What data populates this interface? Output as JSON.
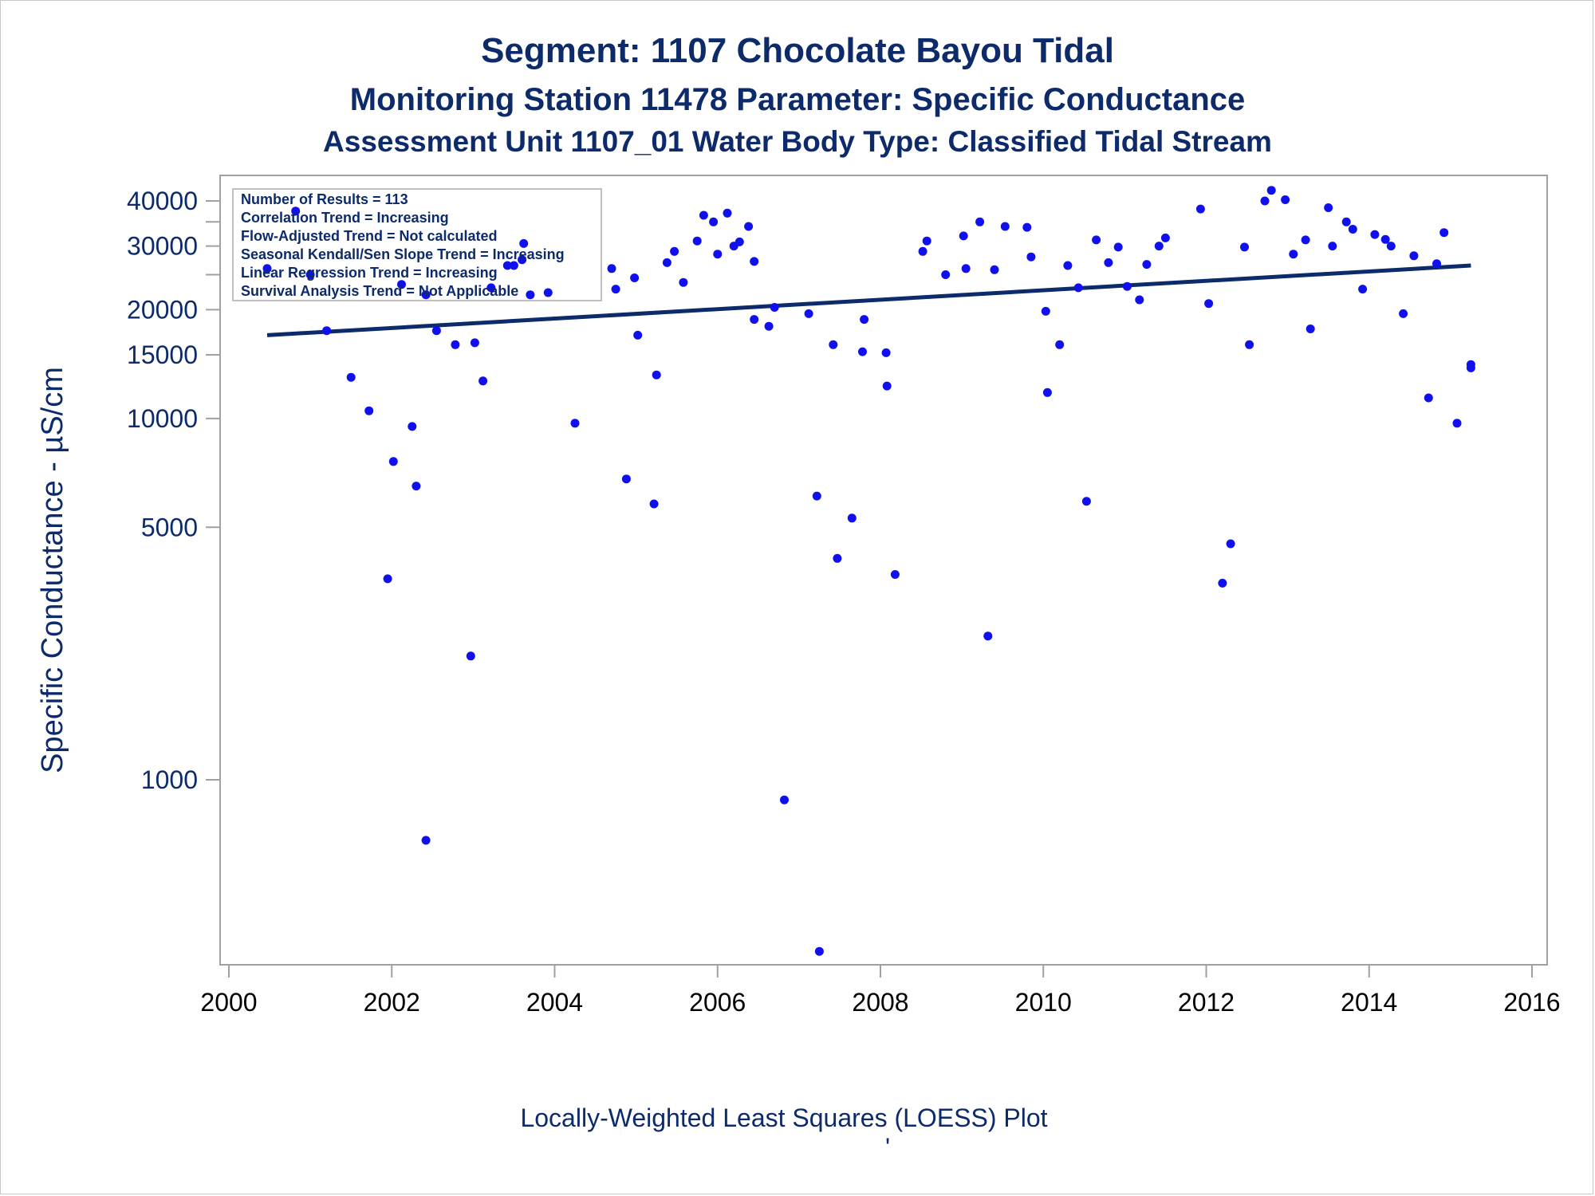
{
  "chart_data": {
    "type": "scatter",
    "title": "Segment: 1107  Chocolate Bayou Tidal",
    "subtitle": "Monitoring Station 11478 Parameter: Specific Conductance",
    "subtitle2": "Assessment Unit 1107_01   Water Body Type: Classified Tidal Stream",
    "ylabel": "Specific Conductance -  µS/cm",
    "footnote": "Locally-Weighted Least Squares (LOESS) Plot",
    "footnote_mark": "'",
    "y_scale": "log",
    "xlim": [
      2000,
      2016
    ],
    "ylim": [
      310,
      45000
    ],
    "x_ticks": [
      2000,
      2002,
      2004,
      2006,
      2008,
      2010,
      2012,
      2014,
      2016
    ],
    "y_ticks": [
      1000,
      5000,
      10000,
      15000,
      20000,
      30000,
      40000
    ],
    "y_minor_ticks": [
      25000,
      35000
    ],
    "grid": false,
    "stats_box": [
      "Number of Results = 113",
      "Correlation Trend = Increasing",
      "Flow-Adjusted Trend = Not calculated",
      "Seasonal Kendall/Sen Slope Trend = Increasing",
      "Linear Regression Trend = Increasing",
      "Survival Analysis Trend = Not Applicable"
    ],
    "colors": {
      "points": "#1010ee",
      "trend": "#0d2a6b",
      "axis_text": "#0d2a6b",
      "frame": "#a0a0a0"
    },
    "trend_line": {
      "x": [
        2000.47,
        2015.25
      ],
      "y": [
        17000,
        26500
      ]
    },
    "points": [
      [
        2000.47,
        26000
      ],
      [
        2000.82,
        37500
      ],
      [
        2001.0,
        25000
      ],
      [
        2001.2,
        17500
      ],
      [
        2001.5,
        13000
      ],
      [
        2001.72,
        10500
      ],
      [
        2001.95,
        3600
      ],
      [
        2002.02,
        7600
      ],
      [
        2002.12,
        23500
      ],
      [
        2002.25,
        9500
      ],
      [
        2002.3,
        6500
      ],
      [
        2002.42,
        22000
      ],
      [
        2002.42,
        680
      ],
      [
        2002.55,
        17500
      ],
      [
        2002.78,
        16000
      ],
      [
        2002.97,
        2200
      ],
      [
        2003.02,
        16200
      ],
      [
        2003.12,
        12700
      ],
      [
        2003.22,
        23000
      ],
      [
        2003.42,
        26500
      ],
      [
        2003.5,
        26500
      ],
      [
        2003.6,
        27500
      ],
      [
        2003.62,
        30500
      ],
      [
        2003.7,
        22000
      ],
      [
        2003.92,
        22300
      ],
      [
        2004.25,
        9700
      ],
      [
        2004.7,
        26000
      ],
      [
        2004.75,
        22800
      ],
      [
        2004.88,
        6800
      ],
      [
        2004.98,
        24500
      ],
      [
        2005.02,
        17000
      ],
      [
        2005.22,
        5800
      ],
      [
        2005.25,
        13200
      ],
      [
        2005.38,
        27000
      ],
      [
        2005.47,
        29000
      ],
      [
        2005.58,
        23800
      ],
      [
        2005.75,
        31000
      ],
      [
        2005.83,
        36500
      ],
      [
        2005.95,
        35000
      ],
      [
        2006.0,
        28500
      ],
      [
        2006.12,
        37000
      ],
      [
        2006.2,
        30000
      ],
      [
        2006.27,
        30800
      ],
      [
        2006.38,
        34000
      ],
      [
        2006.45,
        27200
      ],
      [
        2006.45,
        18800
      ],
      [
        2006.63,
        18000
      ],
      [
        2006.7,
        20300
      ],
      [
        2006.82,
        880
      ],
      [
        2007.12,
        19500
      ],
      [
        2007.22,
        6100
      ],
      [
        2007.25,
        335
      ],
      [
        2007.42,
        16000
      ],
      [
        2007.47,
        4100
      ],
      [
        2007.65,
        5300
      ],
      [
        2007.78,
        15300
      ],
      [
        2007.8,
        18800
      ],
      [
        2008.07,
        15200
      ],
      [
        2008.08,
        12300
      ],
      [
        2008.18,
        3700
      ],
      [
        2008.52,
        29000
      ],
      [
        2008.57,
        31000
      ],
      [
        2008.8,
        25000
      ],
      [
        2009.02,
        32000
      ],
      [
        2009.05,
        26000
      ],
      [
        2009.22,
        35000
      ],
      [
        2009.32,
        2500
      ],
      [
        2009.4,
        25800
      ],
      [
        2009.53,
        34000
      ],
      [
        2009.8,
        33800
      ],
      [
        2009.85,
        28000
      ],
      [
        2010.03,
        19800
      ],
      [
        2010.05,
        11800
      ],
      [
        2010.2,
        16000
      ],
      [
        2010.3,
        26500
      ],
      [
        2010.43,
        23000
      ],
      [
        2010.53,
        5900
      ],
      [
        2010.65,
        31200
      ],
      [
        2010.8,
        27000
      ],
      [
        2010.92,
        29800
      ],
      [
        2011.03,
        23200
      ],
      [
        2011.18,
        21300
      ],
      [
        2011.27,
        26700
      ],
      [
        2011.42,
        30000
      ],
      [
        2011.5,
        31600
      ],
      [
        2011.93,
        38000
      ],
      [
        2012.03,
        20800
      ],
      [
        2012.2,
        3500
      ],
      [
        2012.3,
        4500
      ],
      [
        2012.47,
        29800
      ],
      [
        2012.53,
        16000
      ],
      [
        2012.72,
        40000
      ],
      [
        2012.8,
        42800
      ],
      [
        2012.97,
        40300
      ],
      [
        2013.07,
        28500
      ],
      [
        2013.22,
        31200
      ],
      [
        2013.28,
        17700
      ],
      [
        2013.5,
        38300
      ],
      [
        2013.55,
        30000
      ],
      [
        2013.72,
        35000
      ],
      [
        2013.8,
        33400
      ],
      [
        2013.92,
        22800
      ],
      [
        2014.07,
        32300
      ],
      [
        2014.2,
        31300
      ],
      [
        2014.27,
        30000
      ],
      [
        2014.42,
        19500
      ],
      [
        2014.55,
        28200
      ],
      [
        2014.73,
        11400
      ],
      [
        2014.83,
        26800
      ],
      [
        2014.92,
        32700
      ],
      [
        2015.08,
        9700
      ],
      [
        2015.25,
        14100
      ],
      [
        2015.25,
        13800
      ]
    ]
  }
}
